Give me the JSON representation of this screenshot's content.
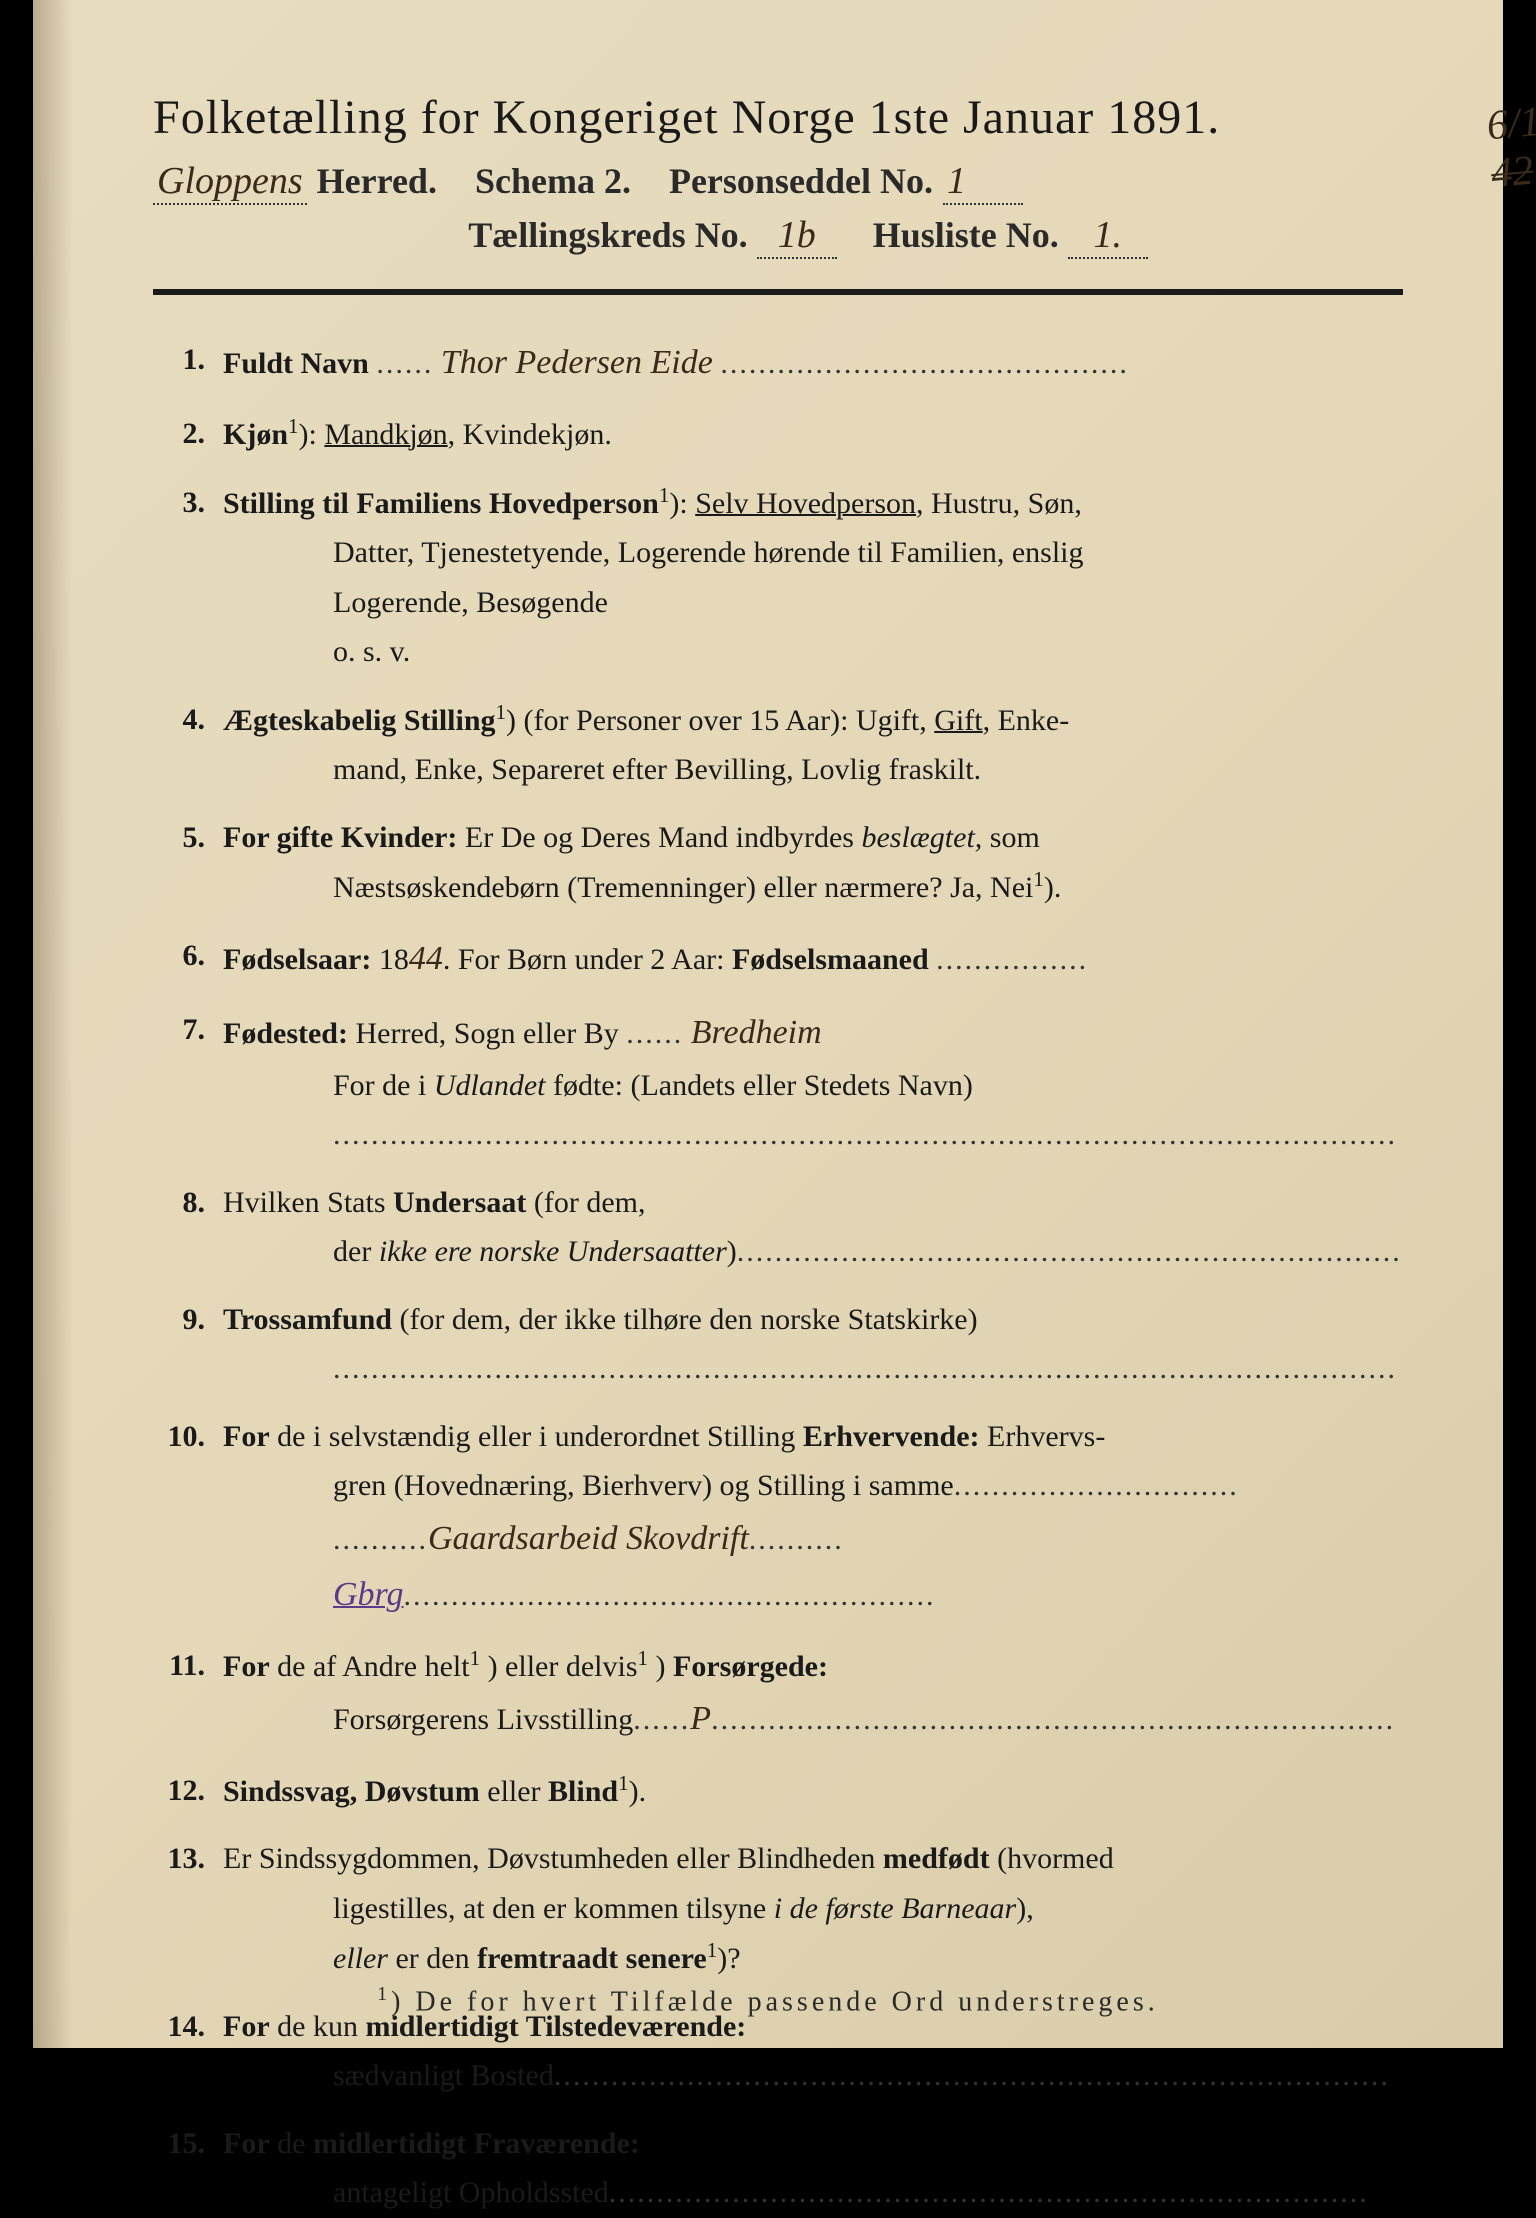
{
  "header": {
    "title": "Folketælling for Kongeriget Norge 1ste Januar 1891.",
    "herred_handwritten": "Gloppens",
    "herred_label": "Herred.",
    "schema_label": "Schema 2.",
    "personseddel_label": "Personseddel No.",
    "personseddel_no": "1",
    "tallingskreds_label": "Tællingskreds No.",
    "tallingskreds_no": "1b",
    "husliste_label": "Husliste No.",
    "husliste_no": "1.",
    "margin_note_top": "6/1",
    "margin_note_struck": "42"
  },
  "items": {
    "1": {
      "num": "1.",
      "label": "Fuldt Navn",
      "value": "Thor Pedersen Eide"
    },
    "2": {
      "num": "2.",
      "label": "Kjøn",
      "sup": "1",
      "text": "): ",
      "opt1": "Mandkjøn",
      "text2": ", Kvindekjøn."
    },
    "3": {
      "num": "3.",
      "label": "Stilling til Familiens Hovedperson",
      "sup": "1",
      "text": "): ",
      "opt1": "Selv Hovedperson",
      "text2": ", Hustru, Søn,",
      "cont1": "Datter, Tjenestetyende, Logerende hørende til Familien, enslig",
      "cont2": "Logerende, Besøgende",
      "cont3": "o. s. v."
    },
    "4": {
      "num": "4.",
      "label": "Ægteskabelig Stilling",
      "sup": "1",
      "text": ") (for Personer over 15 Aar): Ugift, ",
      "opt1": "Gift",
      "text2": ", Enke-",
      "cont1": "mand, Enke, Separeret efter Bevilling, Lovlig fraskilt."
    },
    "5": {
      "num": "5.",
      "label": "For gifte Kvinder:",
      "text": " Er De og Deres Mand indbyrdes ",
      "italic1": "beslægtet,",
      "text2": " som",
      "cont1": "Næstsøskendebørn (Tremenninger) eller nærmere? Ja, Nei",
      "sup2": "1",
      "cont1end": ")."
    },
    "6": {
      "num": "6.",
      "label": "Fødselsaar:",
      "year_prefix": " 18",
      "year_hw": "44",
      "text": ". For Børn under 2 Aar: ",
      "label2": "Fødselsmaaned",
      "dots": "................"
    },
    "7": {
      "num": "7.",
      "label": "Fødested:",
      "text": " Herred, Sogn eller By",
      "value": "Bredheim",
      "cont1_pre": "For de i ",
      "cont1_italic": "Udlandet",
      "cont1_post": " fødte: (Landets eller Stedets Navn)",
      "dots": "................................................................................................................"
    },
    "8": {
      "num": "8.",
      "text": "Hvilken Stats ",
      "bold1": "Undersaat",
      "text2": " (for dem,",
      "cont1_pre": "der ",
      "cont1_italic": "ikke ere norske Undersaatter",
      "cont1_post": ")",
      "dots": "......................................................................"
    },
    "9": {
      "num": "9.",
      "bold1": "Trossamfund",
      "text": " (for dem, der ikke tilhøre den norske Statskirke)",
      "dots": "................................................................................................................"
    },
    "10": {
      "num": "10.",
      "bold1": "For",
      "text": " de i selvstændig eller i underordnet Stilling ",
      "bold2": "Erhvervende:",
      "text2": " Erhvervs-",
      "cont1": "gren (Hovednæring, Bierhverv) og Stilling i samme",
      "dots1": "..............................",
      "hw1": "Gaardsarbeid Skovdrift",
      "hw2": "Gbrg",
      "dots2": "........................................................"
    },
    "11": {
      "num": "11.",
      "bold1": "For",
      "text": " de af Andre helt",
      "sup1": "1",
      "text2": ") eller delvis",
      "sup2": "1",
      "text3": ") ",
      "bold2": "Forsørgede:",
      "cont1": "Forsørgerens Livsstilling",
      "hw": "P",
      "dots": "........................................................................"
    },
    "12": {
      "num": "12.",
      "bold1": "Sindssvag, Døvstum",
      "text": " eller ",
      "bold2": "Blind",
      "sup": "1",
      "text2": ")."
    },
    "13": {
      "num": "13.",
      "text": "Er Sindssygdommen, Døvstumheden eller Blindheden ",
      "bold1": "medfødt",
      "text2": " (hvormed",
      "cont1_pre": "ligestilles, at den er kommen tilsyne ",
      "cont1_italic": "i de første Barneaar",
      "cont1_post": "),",
      "cont2_italic": "eller",
      "cont2_text": " er den ",
      "cont2_bold": "fremtraadt senere",
      "sup": "1",
      "cont2_end": ")?"
    },
    "14": {
      "num": "14.",
      "bold1": "For",
      "text": " de kun ",
      "bold2": "midlertidigt Tilstedeværende:",
      "cont1": "sædvanligt Bosted",
      "dots": "........................................................................................"
    },
    "15": {
      "num": "15.",
      "bold1": "For",
      "text": " de ",
      "bold2": "midlertidigt Fraværende:",
      "cont1": "antageligt Opholdssted",
      "dots": "................................................................................"
    }
  },
  "footnote": {
    "sup": "1",
    "text": ") De for hvert Tilfælde passende Ord understreges."
  }
}
